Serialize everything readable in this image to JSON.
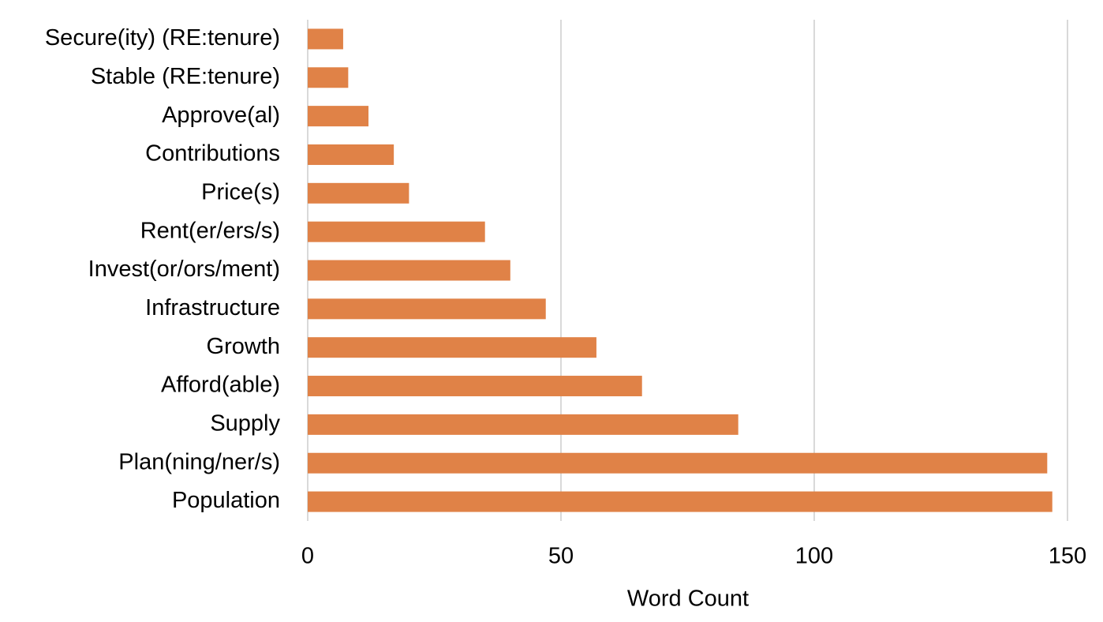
{
  "chart_data": {
    "type": "bar",
    "orientation": "horizontal",
    "x_label": "Word Count",
    "categories": [
      "Secure(ity) (RE:tenure)",
      "Stable (RE:tenure)",
      "Approve(al)",
      "Contributions",
      "Price(s)",
      "Rent(er/ers/s)",
      "Invest(or/ors/ment)",
      "Infrastructure",
      "Growth",
      "Afford(able)",
      "Supply",
      "Plan(ning/ner/s)",
      "Population"
    ],
    "values": [
      7,
      8,
      12,
      17,
      20,
      35,
      40,
      47,
      57,
      66,
      85,
      146,
      147
    ],
    "color": "#e08247",
    "xlim": [
      0,
      150
    ],
    "xticks": [
      0,
      50,
      100,
      150
    ],
    "grid": true
  }
}
